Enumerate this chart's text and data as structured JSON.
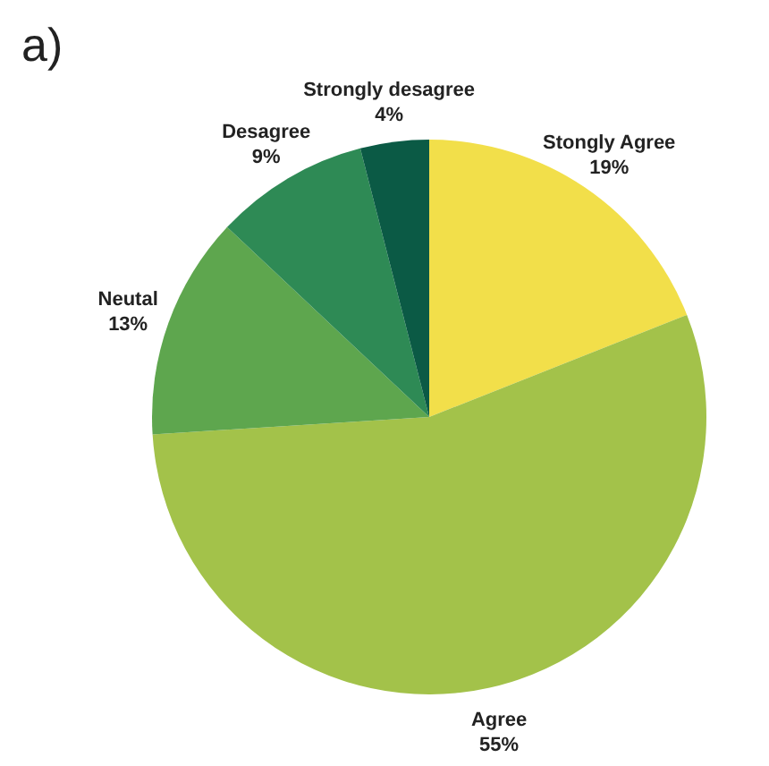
{
  "chart_data": {
    "type": "pie",
    "title": "a)",
    "categories": [
      "Stongly Agree",
      "Agree",
      "Neutal",
      "Desagree",
      "Strongly desagree"
    ],
    "values": [
      19,
      55,
      13,
      9,
      4
    ],
    "value_labels": [
      "19%",
      "55%",
      "13%",
      "9%",
      "4%"
    ],
    "colors": [
      "#f2df4a",
      "#a3c24a",
      "#5ea64e",
      "#2e8a55",
      "#0b5a45"
    ]
  }
}
